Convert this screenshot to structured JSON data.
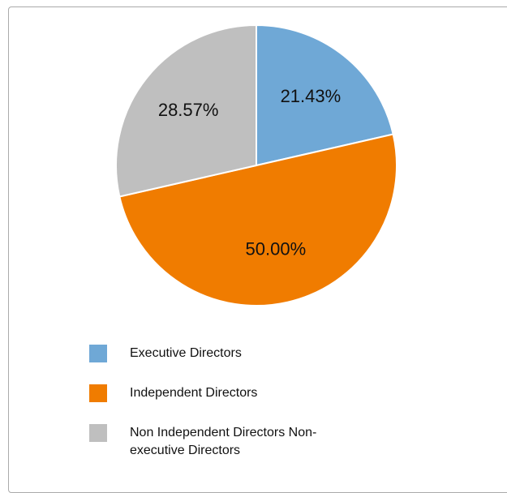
{
  "chart_data": {
    "type": "pie",
    "categories": [
      "Executive Directors",
      "Independent Directors",
      "Non Independent Directors Non-executive Directors"
    ],
    "values": [
      21.43,
      50.0,
      28.57
    ],
    "value_labels": [
      "21.43%",
      "50.00%",
      "28.57%"
    ],
    "colors": [
      "#6fa8d6",
      "#f07c00",
      "#bfbfbf"
    ],
    "legend": "bottom"
  }
}
